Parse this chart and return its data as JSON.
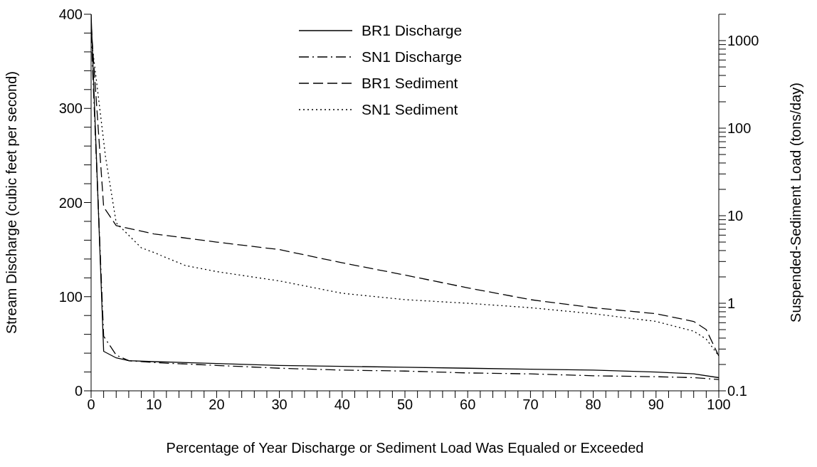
{
  "chart_data": {
    "type": "line",
    "xlabel": "Percentage of Year Discharge or Sediment Load Was Equaled or Exceeded",
    "ylabel": "Stream Discharge (cubic feet per second)",
    "y2label": "Suspended-Sediment Load (tons/day)",
    "xlim": [
      0,
      100
    ],
    "xticks": [
      0,
      {
        "value": 2,
        "label": null
      },
      {
        "value": 4,
        "label": null
      },
      {
        "value": 6,
        "label": null
      },
      {
        "value": 8,
        "label": null
      },
      10,
      {
        "value": 12,
        "label": null
      },
      {
        "value": 14,
        "label": null
      },
      {
        "value": 16,
        "label": null
      },
      {
        "value": 18,
        "label": null
      },
      20,
      {
        "value": 22,
        "label": null
      },
      {
        "value": 24,
        "label": null
      },
      {
        "value": 26,
        "label": null
      },
      {
        "value": 28,
        "label": null
      },
      30,
      {
        "value": 32,
        "label": null
      },
      {
        "value": 34,
        "label": null
      },
      {
        "value": 36,
        "label": null
      },
      {
        "value": 38,
        "label": null
      },
      40,
      {
        "value": 42,
        "label": null
      },
      {
        "value": 44,
        "label": null
      },
      {
        "value": 46,
        "label": null
      },
      {
        "value": 48,
        "label": null
      },
      50,
      {
        "value": 52,
        "label": null
      },
      {
        "value": 54,
        "label": null
      },
      {
        "value": 56,
        "label": null
      },
      {
        "value": 58,
        "label": null
      },
      60,
      {
        "value": 62,
        "label": null
      },
      {
        "value": 64,
        "label": null
      },
      {
        "value": 66,
        "label": null
      },
      {
        "value": 68,
        "label": null
      },
      70,
      {
        "value": 72,
        "label": null
      },
      {
        "value": 74,
        "label": null
      },
      {
        "value": 76,
        "label": null
      },
      {
        "value": 78,
        "label": null
      },
      80,
      {
        "value": 82,
        "label": null
      },
      {
        "value": 84,
        "label": null
      },
      {
        "value": 86,
        "label": null
      },
      {
        "value": 88,
        "label": null
      },
      90,
      {
        "value": 92,
        "label": null
      },
      {
        "value": 94,
        "label": null
      },
      {
        "value": 96,
        "label": null
      },
      {
        "value": 98,
        "label": null
      },
      100
    ],
    "ylim": [
      0,
      400
    ],
    "yticks": [
      0,
      {
        "value": 20,
        "label": null
      },
      {
        "value": 40,
        "label": null
      },
      {
        "value": 60,
        "label": null
      },
      {
        "value": 80,
        "label": null
      },
      100,
      {
        "value": 120,
        "label": null
      },
      {
        "value": 140,
        "label": null
      },
      {
        "value": 160,
        "label": null
      },
      {
        "value": 180,
        "label": null
      },
      200,
      {
        "value": 220,
        "label": null
      },
      {
        "value": 240,
        "label": null
      },
      {
        "value": 260,
        "label": null
      },
      {
        "value": 280,
        "label": null
      },
      300,
      {
        "value": 320,
        "label": null
      },
      {
        "value": 340,
        "label": null
      },
      {
        "value": 360,
        "label": null
      },
      {
        "value": 380,
        "label": null
      },
      400
    ],
    "log": "y2",
    "y2lim": [
      0.1,
      2000
    ],
    "y2ticks": [
      0.1,
      {
        "value": 0.2,
        "label": null
      },
      {
        "value": 0.3,
        "label": null
      },
      {
        "value": 0.4,
        "label": null
      },
      {
        "value": 0.5,
        "label": null
      },
      {
        "value": 0.6,
        "label": null
      },
      {
        "value": 0.7,
        "label": null
      },
      {
        "value": 0.8,
        "label": null
      },
      {
        "value": 0.9,
        "label": null
      },
      1,
      {
        "value": 2,
        "label": null
      },
      {
        "value": 3,
        "label": null
      },
      {
        "value": 4,
        "label": null
      },
      {
        "value": 5,
        "label": null
      },
      {
        "value": 6,
        "label": null
      },
      {
        "value": 7,
        "label": null
      },
      {
        "value": 8,
        "label": null
      },
      {
        "value": 9,
        "label": null
      },
      10,
      {
        "value": 20,
        "label": null
      },
      {
        "value": 30,
        "label": null
      },
      {
        "value": 40,
        "label": null
      },
      {
        "value": 50,
        "label": null
      },
      {
        "value": 60,
        "label": null
      },
      {
        "value": 70,
        "label": null
      },
      {
        "value": 80,
        "label": null
      },
      {
        "value": 90,
        "label": null
      },
      100,
      {
        "value": 200,
        "label": null
      },
      {
        "value": 300,
        "label": null
      },
      {
        "value": 400,
        "label": null
      },
      {
        "value": 500,
        "label": null
      },
      {
        "value": 600,
        "label": null
      },
      {
        "value": 700,
        "label": null
      },
      {
        "value": 800,
        "label": null
      },
      {
        "value": 900,
        "label": null
      },
      1000,
      {
        "value": 2000,
        "label": null
      }
    ],
    "legend": "top",
    "grid": false,
    "marker": "none",
    "series": [
      {
        "name": "BR1 Discharge",
        "color": "#000000",
        "line_style": "solid",
        "x": [
          0,
          2,
          4,
          6,
          10,
          20,
          30,
          40,
          50,
          60,
          70,
          80,
          90,
          96,
          100
        ],
        "values": [
          400,
          42,
          35,
          32,
          31,
          29,
          27,
          26,
          25,
          24,
          23,
          22,
          20,
          18,
          14
        ]
      },
      {
        "name": "SN1 Discharge",
        "color": "#000000",
        "line_style": "dashdot",
        "x": [
          0,
          1,
          2,
          4,
          6,
          10,
          20,
          30,
          40,
          50,
          60,
          70,
          80,
          90,
          96,
          100
        ],
        "values": [
          380,
          220,
          58,
          38,
          32,
          30,
          27,
          24,
          22,
          21,
          19,
          18,
          16,
          15,
          14,
          12
        ]
      },
      {
        "name": "BR1 Sediment",
        "color": "#000000",
        "line_style": "dashed",
        "axis": "y2",
        "x": [
          0,
          2,
          4,
          10,
          20,
          30,
          40,
          50,
          60,
          70,
          80,
          90,
          96,
          98,
          100
        ],
        "values": [
          1500,
          12.6,
          7.7,
          6.2,
          5.0,
          4.1,
          2.9,
          2.1,
          1.5,
          1.1,
          0.89,
          0.76,
          0.62,
          0.5,
          0.25
        ]
      },
      {
        "name": "SN1 Sediment",
        "color": "#000000",
        "line_style": "dotted",
        "axis": "y2",
        "x": [
          0,
          0.7,
          2.3,
          4,
          8,
          10,
          15,
          20,
          30,
          40,
          50,
          60,
          70,
          80,
          90,
          96,
          98,
          100
        ],
        "values": [
          1100,
          430,
          47,
          8.3,
          4.3,
          3.8,
          2.7,
          2.3,
          1.8,
          1.3,
          1.1,
          1.0,
          0.89,
          0.76,
          0.62,
          0.48,
          0.39,
          0.25
        ]
      }
    ]
  }
}
